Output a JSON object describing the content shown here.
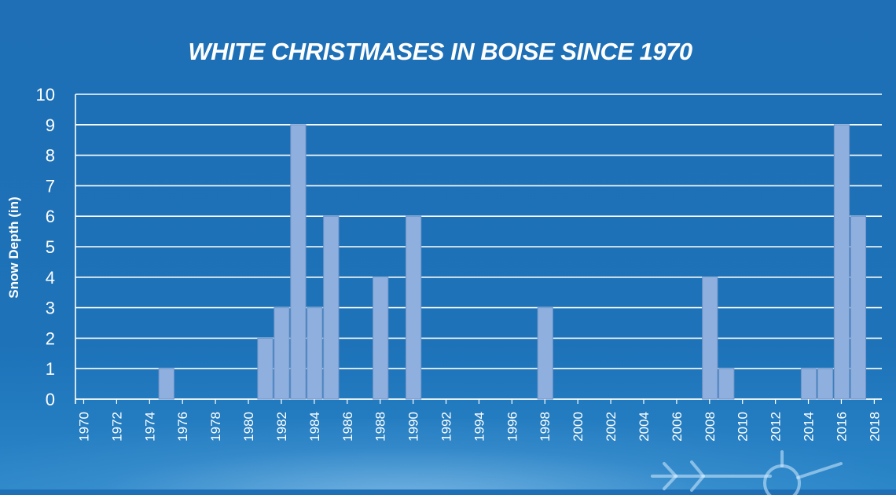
{
  "chart_data": {
    "type": "bar",
    "title": "WHITE CHRISTMASES IN BOISE SINCE 1970",
    "xlabel": "",
    "ylabel": "Snow Depth (in)",
    "ylim": [
      0,
      10
    ],
    "yticks": [
      "0",
      "1",
      "2",
      "3",
      "4",
      "5",
      "6",
      "7",
      "8",
      "9",
      "10"
    ],
    "xticks": [
      "1970",
      "1972",
      "1974",
      "1976",
      "1978",
      "1980",
      "1982",
      "1984",
      "1986",
      "1988",
      "1990",
      "1992",
      "1994",
      "1996",
      "1998",
      "2000",
      "2002",
      "2004",
      "2006",
      "2008",
      "2010",
      "2012",
      "2014",
      "2016",
      "2018"
    ],
    "grid": true,
    "categories": [
      "1970",
      "1971",
      "1972",
      "1973",
      "1974",
      "1975",
      "1976",
      "1977",
      "1978",
      "1979",
      "1980",
      "1981",
      "1982",
      "1983",
      "1984",
      "1985",
      "1986",
      "1987",
      "1988",
      "1989",
      "1990",
      "1991",
      "1992",
      "1993",
      "1994",
      "1995",
      "1996",
      "1997",
      "1998",
      "1999",
      "2000",
      "2001",
      "2002",
      "2003",
      "2004",
      "2005",
      "2006",
      "2007",
      "2008",
      "2009",
      "2010",
      "2011",
      "2012",
      "2013",
      "2014",
      "2015",
      "2016",
      "2017",
      "2018"
    ],
    "values": [
      0,
      0,
      0,
      0,
      0,
      1,
      0,
      0,
      0,
      0,
      0,
      2,
      3,
      9,
      3,
      6,
      0,
      0,
      4,
      0,
      6,
      0,
      0,
      0,
      0,
      0,
      0,
      0,
      3,
      0,
      0,
      0,
      0,
      0,
      0,
      0,
      0,
      0,
      4,
      1,
      0,
      0,
      0,
      0,
      1,
      1,
      9,
      6,
      0
    ],
    "colors": {
      "bar": "#8fb0de",
      "bar_stroke": "#6f94c8",
      "grid": "#ffffff",
      "text": "#ffffff"
    }
  }
}
